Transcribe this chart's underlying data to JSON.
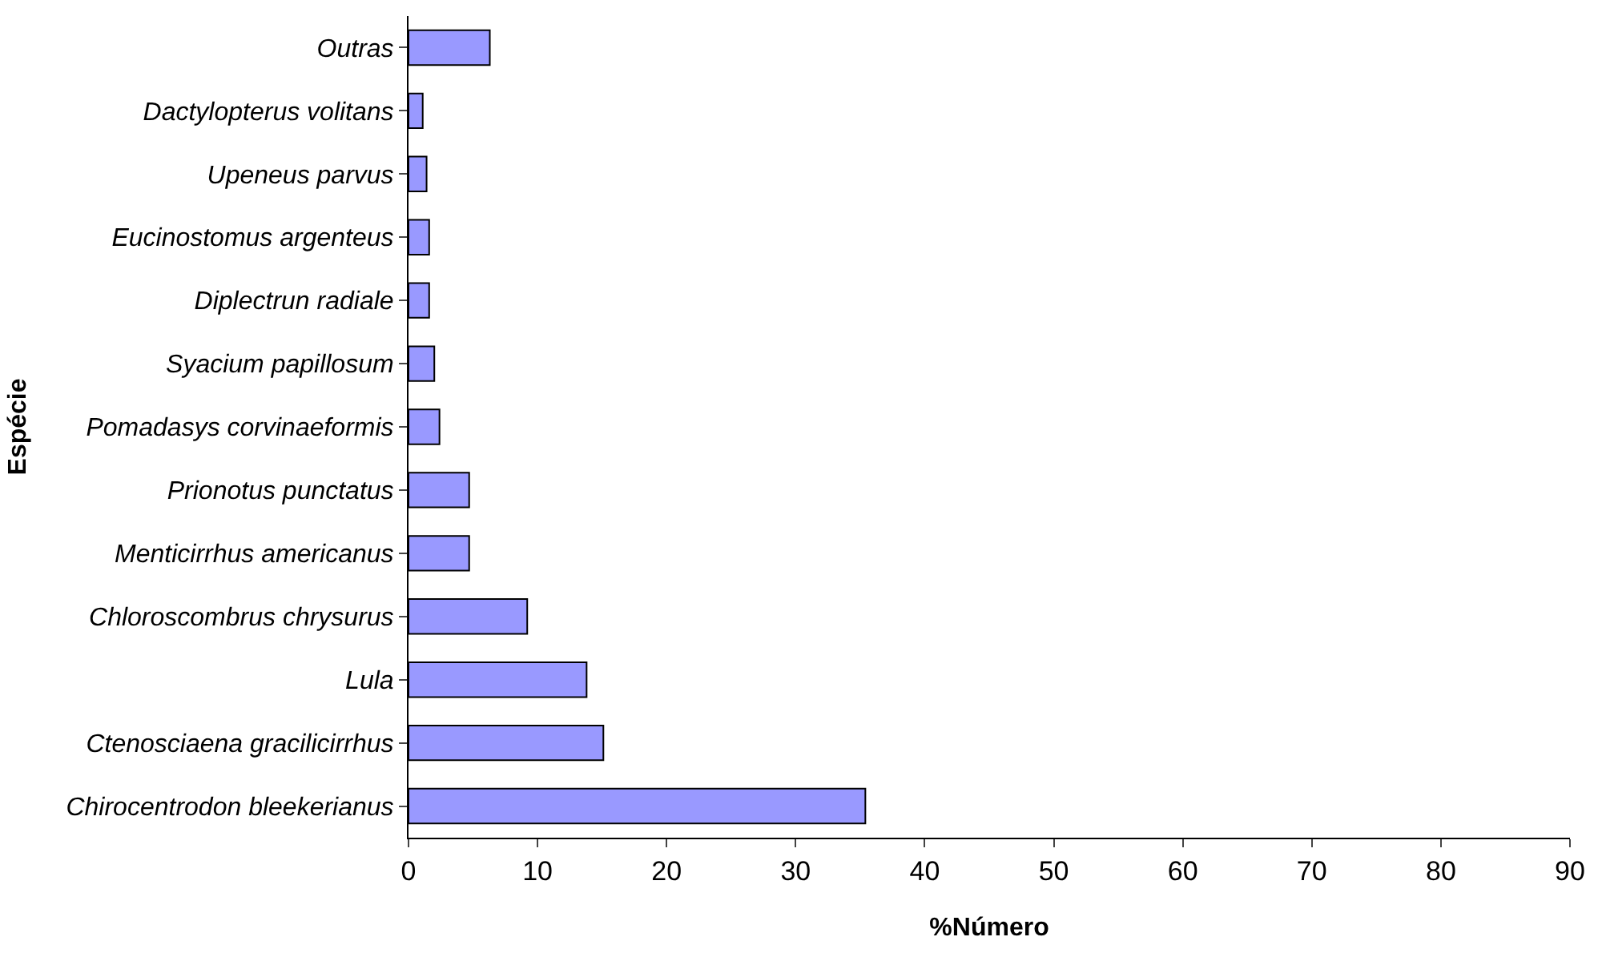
{
  "chart_data": {
    "type": "bar",
    "orientation": "horizontal",
    "xlabel": "%Número",
    "ylabel": "Espécie",
    "categories": [
      "Outras",
      "Dactylopterus volitans",
      "Upeneus parvus",
      "Eucinostomus argenteus",
      "Diplectrun radiale",
      "Syacium papillosum",
      "Pomadasys corvinaeformis",
      "Prionotus punctatus",
      "Menticirrhus americanus",
      "Chloroscombrus chrysurus",
      "Lula",
      "Ctenosciaena gracilicirrhus",
      "Chirocentrodon bleekerianus"
    ],
    "values": [
      6.3,
      1.1,
      1.4,
      1.6,
      1.6,
      2.0,
      2.4,
      4.7,
      4.7,
      9.2,
      13.8,
      15.1,
      35.4
    ],
    "color": "#9999ff",
    "xlim": [
      0,
      90
    ],
    "xticks": [
      0,
      10,
      20,
      30,
      40,
      50,
      60,
      70,
      80,
      90
    ],
    "legend": false
  }
}
